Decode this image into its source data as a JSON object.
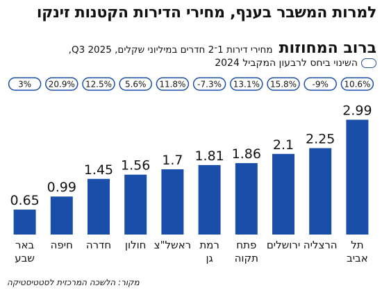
{
  "header": {
    "title": "למרות המשבר בענף, מחירי הדירות הקטנות זינקו",
    "subtitle_bold": "ברוב המחוזות",
    "subtitle": "מחירי דירות 1־2 חדרים במיליוני שקלים, Q3 2025,",
    "legend": "השינוי ביחס לרבעון המקביל 2024"
  },
  "source": "מקור: הלשכה המרכזית לסטטיסטיקה",
  "colors": {
    "bar": "#1a4ea8",
    "pill_border": "#1a4ea8"
  },
  "chart_data": {
    "type": "bar",
    "categories": [
      "תל אביב",
      "הרצליה",
      "ירושלים",
      "פתח תקוה",
      "רמת גן",
      "ראשל\"צ",
      "חולון",
      "חדרה",
      "חיפה",
      "באר שבע"
    ],
    "category_lines": [
      [
        "תל",
        "אביב"
      ],
      [
        "הרצליה"
      ],
      [
        "ירושלים"
      ],
      [
        "פתח",
        "תקוה"
      ],
      [
        "רמת",
        "גן"
      ],
      [
        "ראשל\"צ"
      ],
      [
        "חולון"
      ],
      [
        "חדרה"
      ],
      [
        "חיפה"
      ],
      [
        "באר",
        "שבע"
      ]
    ],
    "values": [
      2.99,
      2.25,
      2.1,
      1.86,
      1.81,
      1.7,
      1.56,
      1.45,
      0.99,
      0.65
    ],
    "value_labels": [
      "2.99",
      "2.25",
      "2.1",
      "1.86",
      "1.81",
      "1.7",
      "1.56",
      "1.45",
      "0.99",
      "0.65"
    ],
    "changes": [
      "10.6%",
      "-9%",
      "15.8%",
      "13.1%",
      "-7.3%",
      "11.8%",
      "5.6%",
      "12.5%",
      "20.9%",
      "3%"
    ],
    "order": "right-to-left",
    "ylim": [
      0,
      3.0
    ],
    "grid": false
  }
}
